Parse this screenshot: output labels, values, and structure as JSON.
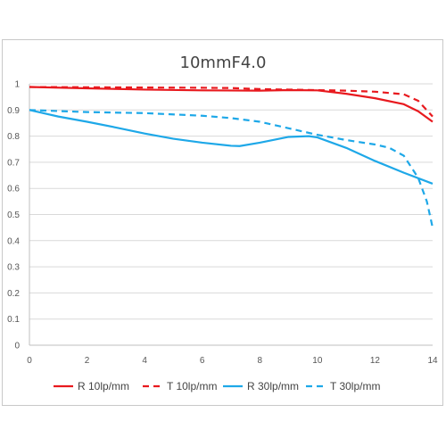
{
  "chart_data": {
    "type": "line",
    "title": "10mmF4.0",
    "xlabel": "",
    "ylabel": "",
    "xlim": [
      0,
      14
    ],
    "ylim": [
      0,
      1
    ],
    "xticks": [
      0,
      2,
      4,
      6,
      8,
      10,
      12,
      14
    ],
    "yticks": [
      0,
      0.1,
      0.2,
      0.3,
      0.4,
      0.5,
      0.6,
      0.7,
      0.8,
      0.9,
      1
    ],
    "ytick_labels": [
      "0",
      "0.1",
      "0.2",
      "0.3",
      "0.4",
      "0.5",
      "0.6",
      "0.7",
      "0.8",
      "0.9",
      "1"
    ],
    "grid": "horizontal",
    "legend_position": "bottom",
    "series": [
      {
        "name": "R 10lp/mm",
        "color": "#e8191e",
        "dash": "solid",
        "x": [
          0,
          2,
          4,
          6,
          8,
          9,
          10,
          11,
          12,
          13,
          13.5,
          14
        ],
        "y": [
          0.988,
          0.983,
          0.978,
          0.975,
          0.974,
          0.976,
          0.975,
          0.962,
          0.945,
          0.922,
          0.895,
          0.855
        ]
      },
      {
        "name": "T 10lp/mm",
        "color": "#e8191e",
        "dash": "dashed",
        "x": [
          0,
          2,
          4,
          6,
          7,
          8,
          9,
          10,
          11,
          12,
          13,
          13.5,
          14
        ],
        "y": [
          0.988,
          0.987,
          0.986,
          0.985,
          0.984,
          0.98,
          0.978,
          0.976,
          0.974,
          0.97,
          0.96,
          0.935,
          0.875
        ]
      },
      {
        "name": "R 30lp/mm",
        "color": "#1ea8e8",
        "dash": "solid",
        "x": [
          0,
          1,
          2,
          3,
          4,
          5,
          6,
          7,
          7.3,
          8,
          9,
          9.7,
          10,
          11,
          12,
          13,
          14
        ],
        "y": [
          0.9,
          0.875,
          0.855,
          0.833,
          0.81,
          0.79,
          0.775,
          0.763,
          0.762,
          0.775,
          0.797,
          0.8,
          0.795,
          0.755,
          0.705,
          0.66,
          0.618
        ]
      },
      {
        "name": "T 30lp/mm",
        "color": "#1ea8e8",
        "dash": "dashed",
        "x": [
          0,
          2,
          4,
          6,
          7,
          8,
          9,
          10,
          11,
          12,
          12.5,
          13,
          13.5,
          13.8,
          14
        ],
        "y": [
          0.9,
          0.892,
          0.888,
          0.878,
          0.869,
          0.855,
          0.83,
          0.805,
          0.785,
          0.768,
          0.755,
          0.725,
          0.64,
          0.55,
          0.45
        ]
      }
    ]
  }
}
